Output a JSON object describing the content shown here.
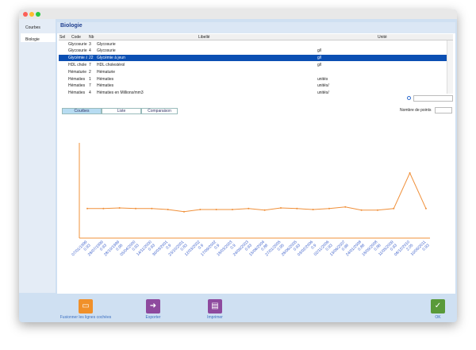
{
  "sidebar": [
    "Courbes",
    "Biologie"
  ],
  "header": {
    "title": "Biologie"
  },
  "table": {
    "columns": [
      "Sel",
      "Code",
      "Nb",
      "Libellé",
      "Unité"
    ],
    "rows": [
      {
        "code": "Glycosurie",
        "nb": 3,
        "label": "Glycosurie"
      },
      {
        "code": "Glycosurie",
        "nb": 4,
        "label": "Glycosurie",
        "unit": "g/l"
      },
      {
        "code": "Glycémie à",
        "nb": 22,
        "label": "Glycémie à jeun",
        "unit": "g/l",
        "selected": true
      },
      {
        "code": "HDL chole",
        "nb": 7,
        "label": "HDL cholestérol",
        "unit": "g/l"
      },
      {
        "code": "Hématurie",
        "nb": 2,
        "label": "Hématurie"
      },
      {
        "code": "Hématies",
        "nb": 1,
        "label": "Hématies",
        "unit": "unités"
      },
      {
        "code": "Hématies",
        "nb": 7,
        "label": "Hématies",
        "unit": "unités/"
      },
      {
        "code": "Hématies",
        "nb": 4,
        "label": "Hématies en Millions/mm3",
        "unit": "unités/"
      }
    ]
  },
  "tabs": [
    {
      "label": "Courbes",
      "active": true
    },
    {
      "label": "Liste"
    },
    {
      "label": "Comparaison"
    }
  ],
  "points_label": "Nombre de points",
  "chart_data": {
    "type": "line",
    "color": "#f0903a",
    "ylim": [
      0,
      3
    ],
    "categories": [
      "07/01/1999",
      "28/07/1999",
      "28/10/1999",
      "05/04/2000",
      "14/11/2000",
      "30/03/2001",
      "23/10/2001",
      "12/03/2002",
      "17/09/2002",
      "18/03/2003",
      "24/09/2003",
      "15/06/2004",
      "27/01/2005",
      "28/06/2005",
      "03/02/2006",
      "02/11/2006",
      "13/06/2007",
      "24/01/2008",
      "18/09/2008",
      "11/05/2009",
      "08/12/2010",
      "10/06/2011"
    ],
    "values": [
      0.93,
      0.93,
      0.95,
      0.93,
      0.93,
      0.9,
      0.83,
      0.9,
      0.9,
      0.9,
      0.93,
      0.88,
      0.95,
      0.93,
      0.9,
      0.93,
      0.98,
      0.88,
      0.88,
      0.93,
      2.05,
      0.93
    ]
  },
  "toolbar": [
    {
      "label": "Fusionner les lignes cochées",
      "color": "#f0902a"
    },
    {
      "label": "Exporter",
      "color": "#8e4a9e"
    },
    {
      "label": "Imprimer",
      "color": "#8e4a9e"
    },
    {
      "label": "OK",
      "color": "#5a9a3a"
    }
  ]
}
